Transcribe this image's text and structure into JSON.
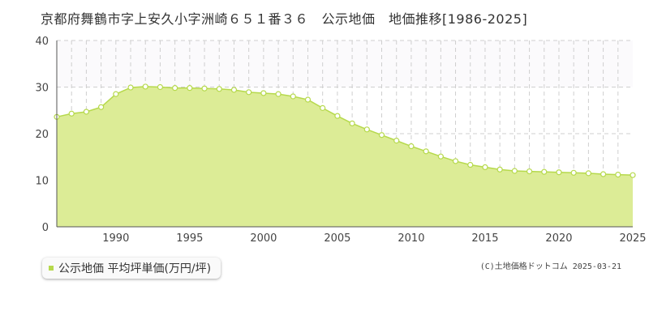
{
  "header": {
    "title": "京都府舞鶴市字上安久小字洲崎６５１番３６　公示地価　地価推移[1986-2025]"
  },
  "legend": {
    "label": "公示地価 平均坪単価(万円/坪)"
  },
  "footer": {
    "copyright": "(C)土地価格ドットコム 2025-03-21"
  },
  "colors": {
    "area_fill": "#dcec96",
    "area_line": "#b6d94c",
    "point_fill": "#ffffff",
    "point_stroke": "#b6d94c",
    "grid": "#cfcfcf",
    "legend_marker": "#b6d94c"
  },
  "chart_data": {
    "type": "area",
    "title": "",
    "xlabel": "",
    "ylabel": "",
    "xlim": [
      1986,
      2025
    ],
    "ylim": [
      0,
      40
    ],
    "x_ticks": [
      "1990",
      "1995",
      "2000",
      "2005",
      "2010",
      "2015",
      "2020",
      "2025"
    ],
    "y_ticks": [
      "0",
      "10",
      "20",
      "30",
      "40"
    ],
    "grid": true,
    "legend_position": "bottom-left",
    "series": [
      {
        "name": "公示地価 平均坪単価(万円/坪)",
        "x": [
          1986,
          1987,
          1988,
          1989,
          1990,
          1991,
          1992,
          1993,
          1994,
          1995,
          1996,
          1997,
          1998,
          1999,
          2000,
          2001,
          2002,
          2003,
          2004,
          2005,
          2006,
          2007,
          2008,
          2009,
          2010,
          2011,
          2012,
          2013,
          2014,
          2015,
          2016,
          2017,
          2018,
          2019,
          2020,
          2021,
          2022,
          2023,
          2024,
          2025
        ],
        "values": [
          23.6,
          24.3,
          24.7,
          25.7,
          28.5,
          29.9,
          30.1,
          30.0,
          29.8,
          29.8,
          29.7,
          29.6,
          29.4,
          28.9,
          28.7,
          28.5,
          28.0,
          27.3,
          25.5,
          23.8,
          22.2,
          20.9,
          19.7,
          18.5,
          17.3,
          16.2,
          15.1,
          14.1,
          13.3,
          12.8,
          12.3,
          12.0,
          11.9,
          11.8,
          11.7,
          11.6,
          11.5,
          11.3,
          11.2,
          11.1
        ]
      }
    ]
  }
}
